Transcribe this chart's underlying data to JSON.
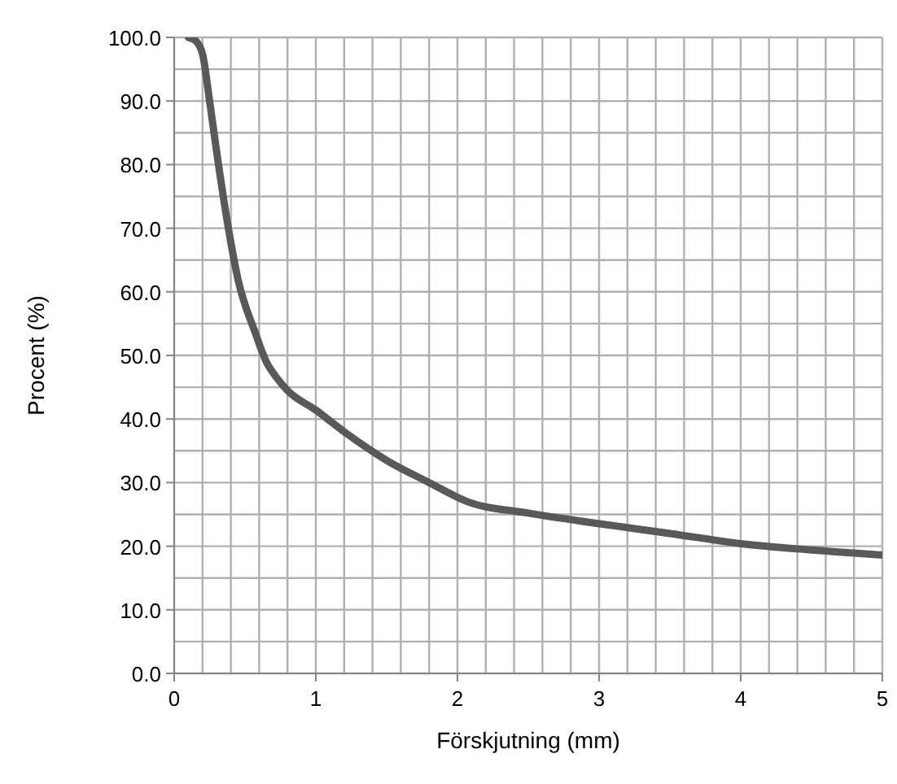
{
  "chart_data": {
    "type": "line",
    "xlabel": "Förskjutning (mm)",
    "ylabel": "Procent (%)",
    "x": [
      0.1,
      0.15,
      0.2,
      0.25,
      0.3,
      0.375,
      0.45,
      0.57,
      0.65,
      0.72,
      0.8,
      1,
      1.2,
      1.5,
      1.8,
      2.07,
      2.5,
      2.98,
      3.5,
      4,
      4.5,
      5
    ],
    "series": [
      {
        "color": "#595959",
        "values": [
          100,
          99.5,
          97.4,
          90,
          82,
          71,
          62,
          53.7,
          49,
          46.6,
          44.5,
          41.4,
          38,
          33.5,
          30,
          27,
          25.2,
          23.6,
          22,
          20.4,
          19.4,
          18.6
        ]
      }
    ],
    "xlim": [
      0,
      5
    ],
    "xticks": [
      0,
      {
        "value": 0.2,
        "label": null
      },
      {
        "value": 0.4,
        "label": null
      },
      {
        "value": 0.6,
        "label": null
      },
      {
        "value": 0.8,
        "label": null
      },
      1,
      {
        "value": 1.2,
        "label": null
      },
      {
        "value": 1.4,
        "label": null
      },
      {
        "value": 1.6,
        "label": null
      },
      {
        "value": 1.8,
        "label": null
      },
      2,
      {
        "value": 2.2,
        "label": null
      },
      {
        "value": 2.4,
        "label": null
      },
      {
        "value": 2.6,
        "label": null
      },
      {
        "value": 2.8,
        "label": null
      },
      3,
      {
        "value": 3.2,
        "label": null
      },
      {
        "value": 3.4,
        "label": null
      },
      {
        "value": 3.6,
        "label": null
      },
      {
        "value": 3.8,
        "label": null
      },
      4,
      {
        "value": 4.2,
        "label": null
      },
      {
        "value": 4.4,
        "label": null
      },
      {
        "value": 4.6,
        "label": null
      },
      {
        "value": 4.8,
        "label": null
      },
      5
    ],
    "ylim": [
      0,
      100
    ],
    "yticks": [
      {
        "value": 0,
        "label": "0.0"
      },
      {
        "value": 5,
        "label": null
      },
      {
        "value": 10,
        "label": "10.0"
      },
      {
        "value": 15,
        "label": null
      },
      {
        "value": 20,
        "label": "20.0"
      },
      {
        "value": 25,
        "label": null
      },
      {
        "value": 30,
        "label": "30.0"
      },
      {
        "value": 35,
        "label": null
      },
      {
        "value": 40,
        "label": "40.0"
      },
      {
        "value": 45,
        "label": null
      },
      {
        "value": 50,
        "label": "50.0"
      },
      {
        "value": 55,
        "label": null
      },
      {
        "value": 60,
        "label": "60.0"
      },
      {
        "value": 65,
        "label": null
      },
      {
        "value": 70,
        "label": "70.0"
      },
      {
        "value": 75,
        "label": null
      },
      {
        "value": 80,
        "label": "80.0"
      },
      {
        "value": 85,
        "label": null
      },
      {
        "value": 90,
        "label": "90.0"
      },
      {
        "value": 95,
        "label": null
      },
      {
        "value": 100,
        "label": "100.0"
      }
    ],
    "grid": true,
    "marker": "none",
    "line_style": "solid"
  }
}
